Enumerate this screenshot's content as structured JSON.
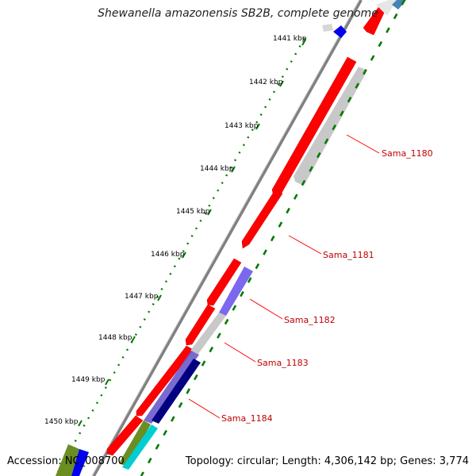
{
  "title": "Shewanella amazonensis SB2B, complete genome",
  "footer": {
    "accession": "Accession: NC_008700",
    "summary": "Topology: circular; Length: 4,306,142 bp; Genes: 3,774"
  },
  "scale_labels": [
    "1441 kbp",
    "1442 kbp",
    "1443 kbp",
    "1444 kbp",
    "1445 kbp",
    "1446 kbp",
    "1447 kbp",
    "1448 kbp",
    "1449 kbp",
    "1450 kbp"
  ],
  "gene_labels": [
    "Sama_1180",
    "Sama_1181",
    "Sama_1182",
    "Sama_1183",
    "Sama_1184"
  ],
  "colors": {
    "backbone": "#808080",
    "forward_cds": "#ff0000",
    "reverse_feature": "#c8c8c8",
    "ticks": "#007a00",
    "label_line": "#ff0000",
    "label_text": "#c00000"
  }
}
